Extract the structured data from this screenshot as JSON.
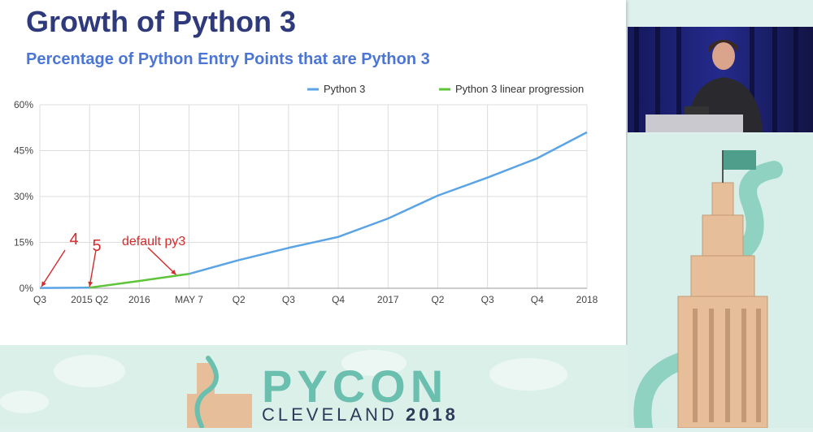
{
  "slide": {
    "title": "Growth of Python 3",
    "subtitle": "Percentage of Python Entry Points that are Python 3"
  },
  "chart_data": {
    "type": "line",
    "categories": [
      "Q3",
      "2015 Q2",
      "2016",
      "MAY 7",
      "Q2",
      "Q3",
      "Q4",
      "2017",
      "Q2",
      "Q3",
      "Q4",
      "2018"
    ],
    "ylim": [
      0,
      60
    ],
    "yticks": [
      "0%",
      "15%",
      "30%",
      "45%",
      "60%"
    ],
    "ytick_values": [
      0,
      15,
      30,
      45,
      60
    ],
    "grid": true,
    "legend_placement": "top-right",
    "series": [
      {
        "name": "Python 3",
        "color": "#5aa4e6",
        "x": [
          3,
          4,
          5,
          6,
          7,
          8,
          9,
          10,
          11
        ],
        "values": [
          4.7,
          9.2,
          13.2,
          16.8,
          22.8,
          30.3,
          36.2,
          42.5,
          51.0
        ]
      },
      {
        "name": "Python 3 linear progression",
        "color": "#5ec43a",
        "x": [
          1,
          2,
          3
        ],
        "values": [
          0.2,
          2.4,
          4.7
        ]
      },
      {
        "name": "",
        "color": "#5aa4e6",
        "x": [
          0,
          1
        ],
        "values": [
          0.1,
          0.2
        ]
      }
    ],
    "annotations": [
      {
        "text": "4",
        "x": 0,
        "y": 0,
        "color": "#d32a2a"
      },
      {
        "text": "5",
        "x": 1,
        "y": 0,
        "color": "#d32a2a"
      },
      {
        "text": "default py3",
        "x": 3,
        "y": 4.7,
        "color": "#d32a2a"
      }
    ]
  },
  "banner": {
    "word": "PYCON",
    "city": "CLEVELAND",
    "year": "2018"
  }
}
